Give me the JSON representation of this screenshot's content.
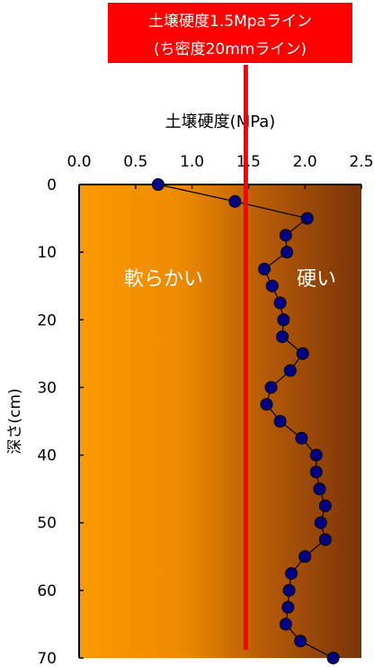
{
  "callout": {
    "line1": "土壌硬度1.5Mpaライン",
    "line2": "(ち密度20mmライン)",
    "color": "#ff0000"
  },
  "regions": {
    "soft_label": "軟らかい",
    "hard_label": "硬い"
  },
  "chart_data": {
    "type": "line",
    "title": "",
    "xlabel": "土壌硬度(MPa)",
    "ylabel": "深さ(cm)",
    "xlim": [
      0,
      2.5
    ],
    "ylim": [
      0,
      70
    ],
    "y_inverted": true,
    "x_axis_position": "top",
    "x_ticks": [
      "0.0",
      "0.5",
      "1.0",
      "1.5",
      "2.0",
      "2.5"
    ],
    "y_ticks": [
      "0",
      "10",
      "20",
      "30",
      "40",
      "50",
      "60",
      "70"
    ],
    "grid": false,
    "threshold_line": {
      "x": 1.5,
      "color": "#ff0000"
    },
    "series": [
      {
        "color": "#000080",
        "x": [
          0.7,
          1.38,
          2.02,
          1.83,
          1.84,
          1.64,
          1.71,
          1.78,
          1.81,
          1.8,
          1.98,
          1.87,
          1.7,
          1.66,
          1.78,
          1.97,
          2.1,
          2.1,
          2.13,
          2.18,
          2.14,
          2.18,
          2.0,
          1.88,
          1.86,
          1.85,
          1.83,
          1.96,
          2.25
        ],
        "y": [
          0,
          2.5,
          5,
          7.5,
          10,
          12.5,
          15,
          17.5,
          20,
          22.5,
          25,
          27.5,
          30,
          32.5,
          35,
          37.5,
          40,
          42.5,
          45,
          47.5,
          50,
          52.5,
          55,
          57.5,
          60,
          62.5,
          65,
          67.5,
          70
        ]
      }
    ]
  }
}
